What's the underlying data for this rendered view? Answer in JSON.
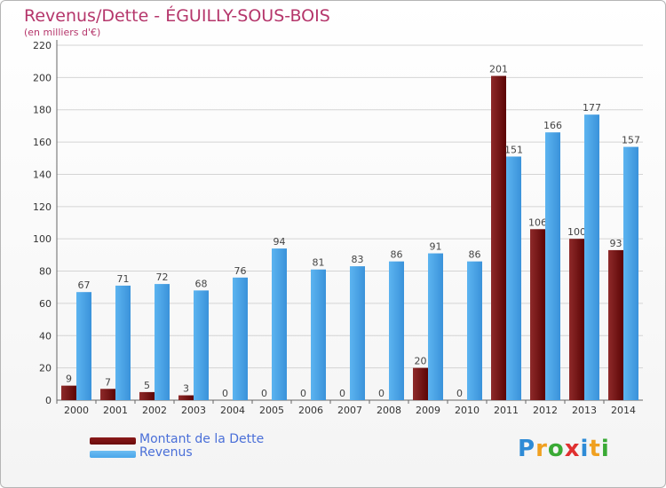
{
  "chart_data": {
    "type": "bar",
    "title": "Revenus/Dette - ÉGUILLY-SOUS-BOIS",
    "subtitle": "(en milliers d'€)",
    "categories": [
      "2000",
      "2001",
      "2002",
      "2003",
      "2004",
      "2005",
      "2006",
      "2007",
      "2008",
      "2009",
      "2010",
      "2011",
      "2012",
      "2013",
      "2014"
    ],
    "series": [
      {
        "name": "Montant de la Dette",
        "color": "#6b0a0a",
        "values": [
          9,
          7,
          5,
          3,
          0,
          0,
          0,
          0,
          0,
          20,
          0,
          201,
          106,
          100,
          93
        ]
      },
      {
        "name": "Revenus",
        "color": "#4aa6ea",
        "values": [
          67,
          71,
          72,
          68,
          76,
          94,
          81,
          83,
          86,
          91,
          86,
          151,
          166,
          177,
          157
        ]
      }
    ],
    "yticks": [
      0,
      20,
      40,
      60,
      80,
      100,
      120,
      140,
      160,
      180,
      200,
      220
    ],
    "ylim": [
      0,
      220
    ],
    "grid": true,
    "legend_position": "bottom-left"
  },
  "brand": {
    "letters": [
      "P",
      "r",
      "o",
      "x",
      "i",
      "t",
      "i"
    ],
    "colors": [
      "#2e8bd6",
      "#f0a020",
      "#3aaa35",
      "#e03030",
      "#2e8bd6",
      "#f0a020",
      "#3aaa35"
    ]
  }
}
